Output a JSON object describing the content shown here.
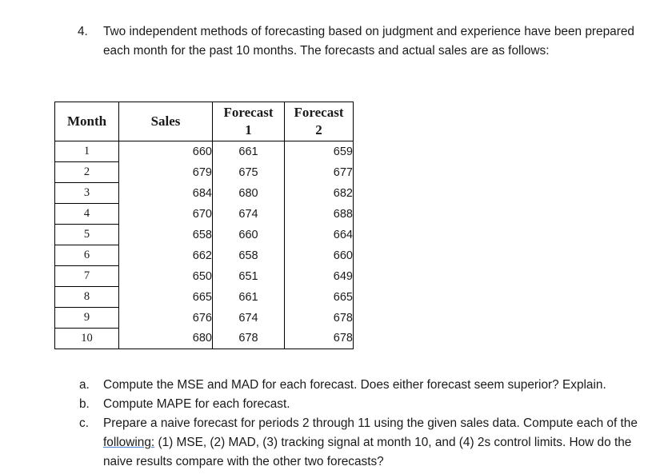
{
  "problem": {
    "number": "4.",
    "text": "Two independent methods of forecasting based on judgment and experience have been prepared each month for the past 10 months. The forecasts and actual sales are as follows:"
  },
  "table": {
    "headers": {
      "month": "Month",
      "sales": "Sales",
      "forecast1_line1": "Forecast",
      "forecast1_line2": "1",
      "forecast2_line1": "Forecast",
      "forecast2_line2": "2"
    },
    "rows": [
      {
        "month": "1",
        "sales": "660",
        "f1": "661",
        "f2": "659"
      },
      {
        "month": "2",
        "sales": "679",
        "f1": "675",
        "f2": "677"
      },
      {
        "month": "3",
        "sales": "684",
        "f1": "680",
        "f2": "682"
      },
      {
        "month": "4",
        "sales": "670",
        "f1": "674",
        "f2": "688"
      },
      {
        "month": "5",
        "sales": "658",
        "f1": "660",
        "f2": "664"
      },
      {
        "month": "6",
        "sales": "662",
        "f1": "658",
        "f2": "660"
      },
      {
        "month": "7",
        "sales": "650",
        "f1": "651",
        "f2": "649"
      },
      {
        "month": "8",
        "sales": "665",
        "f1": "661",
        "f2": "665"
      },
      {
        "month": "9",
        "sales": "676",
        "f1": "674",
        "f2": "678"
      },
      {
        "month": "10",
        "sales": "680",
        "f1": "678",
        "f2": "678"
      }
    ]
  },
  "questions": {
    "a": {
      "letter": "a.",
      "text": "Compute the MSE and MAD for each forecast. Does either forecast seem superior? Explain."
    },
    "b": {
      "letter": "b.",
      "text": "Compute MAPE for each forecast."
    },
    "c": {
      "letter": "c.",
      "text_before": "Prepare a naive forecast for periods 2 through 11 using the given sales data. Compute each of the ",
      "underlined": "following:",
      "text_after": " (1) MSE, (2) MAD, (3) tracking signal at month 10, and (4) 2s control limits. How do the naive results compare with the other two forecasts?"
    }
  }
}
